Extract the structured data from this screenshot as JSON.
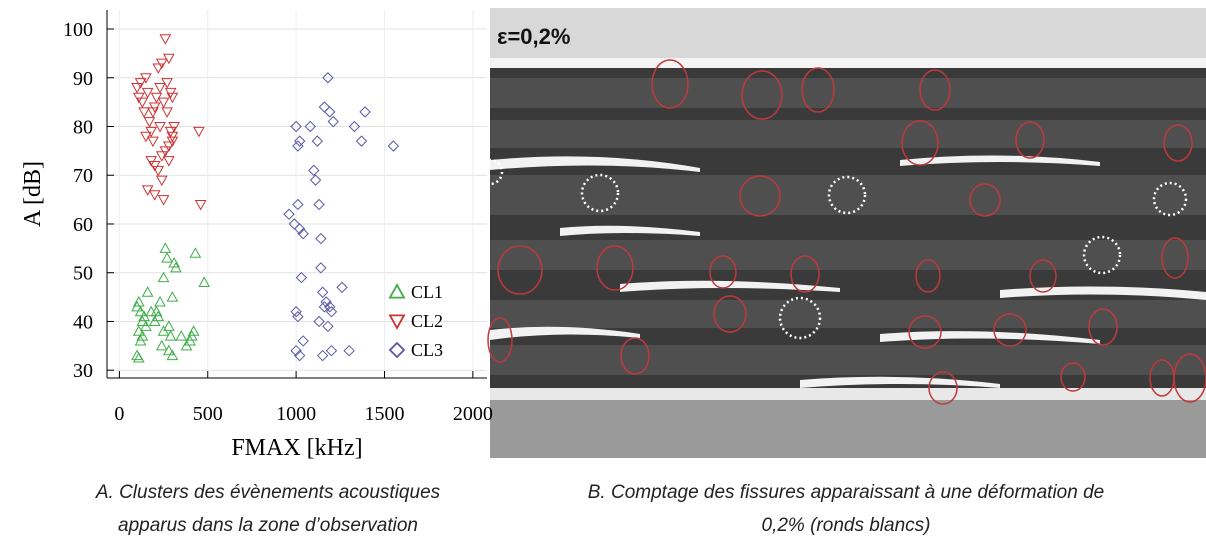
{
  "chart_data": {
    "type": "scatter",
    "x_label": "FMAX [kHz]",
    "y_label": "A [dB]",
    "xlim": [
      -70,
      2080
    ],
    "ylim": [
      28.4,
      103.9
    ],
    "xticks": [
      0,
      500,
      1000,
      1500,
      2000
    ],
    "yticks": [
      30,
      40,
      50,
      60,
      70,
      80,
      90,
      100
    ],
    "grid": true,
    "legend": "lower right",
    "series": [
      {
        "name": "CL1",
        "color": "#3fae49",
        "marker": "triangle-up",
        "x": [
          100,
          110,
          120,
          130,
          110,
          120,
          100,
          110,
          140,
          150,
          130,
          160,
          200,
          210,
          220,
          230,
          250,
          260,
          270,
          280,
          290,
          300,
          310,
          320,
          280,
          300,
          250,
          350,
          380,
          400,
          410,
          420,
          430,
          480,
          240,
          180
        ],
        "values": [
          43,
          44,
          42,
          40,
          38,
          36,
          33,
          32.5,
          41,
          39,
          37,
          46,
          40,
          42,
          41,
          44,
          49,
          55,
          53,
          39,
          37,
          45,
          52,
          51,
          34,
          33,
          38,
          37,
          35,
          36,
          37,
          38,
          54,
          48,
          35,
          42
        ]
      },
      {
        "name": "CL2",
        "color": "#cc3333",
        "marker": "triangle-down",
        "x": [
          100,
          110,
          120,
          130,
          150,
          160,
          140,
          170,
          180,
          150,
          190,
          200,
          210,
          220,
          240,
          260,
          280,
          230,
          250,
          270,
          290,
          300,
          310,
          290,
          300,
          280,
          260,
          240,
          220,
          200,
          180,
          160,
          200,
          240,
          250,
          280,
          300,
          450,
          460,
          230,
          190,
          270
        ],
        "values": [
          88,
          86,
          89,
          85,
          90,
          87,
          83,
          81,
          79,
          78,
          77,
          84,
          86,
          92,
          93,
          98,
          94,
          88,
          85,
          83,
          87,
          86,
          80,
          79,
          78,
          76,
          75,
          74,
          71,
          72,
          73,
          67,
          66,
          69,
          65,
          73,
          77,
          79,
          64,
          80,
          83,
          89
        ]
      },
      {
        "name": "CL3",
        "color": "#5a5aa8",
        "marker": "diamond",
        "x": [
          1000,
          1010,
          1020,
          960,
          990,
          1010,
          1020,
          1040,
          1030,
          1000,
          1010,
          1000,
          1020,
          1040,
          1080,
          1100,
          1110,
          1120,
          1130,
          1140,
          1150,
          1160,
          1170,
          1140,
          1130,
          1180,
          1160,
          1190,
          1210,
          1190,
          1200,
          1180,
          1150,
          1200,
          1260,
          1300,
          1330,
          1370,
          1390,
          1550
        ],
        "values": [
          80,
          76,
          77,
          62,
          60,
          64,
          59,
          58,
          49,
          42,
          41,
          34,
          33,
          36,
          80,
          71,
          69,
          77,
          64,
          51,
          46,
          43,
          44,
          57,
          40,
          90,
          84,
          83,
          81,
          43,
          42,
          39,
          33,
          34,
          47,
          34,
          80,
          77,
          83,
          76
        ]
      }
    ]
  },
  "image": {
    "label": "ε=0,2%"
  },
  "captions": {
    "a": [
      "A. Clusters des évènements acoustiques",
      "apparus dans la zone d’observation"
    ],
    "b": [
      "B. Comptage des fissures apparaissant à une déformation de",
      "0,2% (ronds blancs)"
    ]
  }
}
